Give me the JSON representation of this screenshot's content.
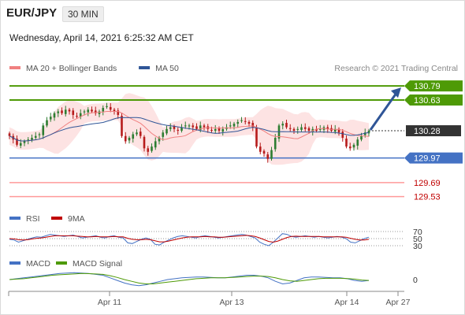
{
  "header": {
    "pair": "EUR/JPY",
    "timeframe": "30 MIN",
    "datetime": "Wednesday, April 14, 2021 6:25:32 AM CET"
  },
  "colors": {
    "bollinger": "#f08080",
    "ma50": "#2f5597",
    "candle_up": "#2e7d32",
    "candle_down": "#b71c1c",
    "resistance": "#4e9a06",
    "support": "#4472c4",
    "target": "#ff9a9a",
    "current": "#333333",
    "rsi": "#4472c4",
    "rsi_ma": "#c00000",
    "macd": "#4472c4",
    "macd_signal": "#4e9a06",
    "arrow": "#2f5597"
  },
  "chart_data": [
    {
      "type": "candlestick",
      "legend": [
        {
          "name": "MA 20 + Bollinger Bands",
          "color": "#f08080"
        },
        {
          "name": "MA 50",
          "color": "#2f5597"
        }
      ],
      "credit": "Research © 2021 Trading Central",
      "x_labels": [
        "Apr 11",
        "Apr 13",
        "Apr 14",
        "Apr 27"
      ],
      "ylim": [
        129.4,
        130.9
      ],
      "levels": [
        {
          "value": 130.79,
          "label": "130.79",
          "kind": "resistance"
        },
        {
          "value": 130.63,
          "label": "130.63",
          "kind": "resistance"
        },
        {
          "value": 130.28,
          "label": "130.28",
          "kind": "current"
        },
        {
          "value": 129.97,
          "label": "129.97",
          "kind": "support"
        },
        {
          "value": 129.69,
          "label": "129.69",
          "kind": "target"
        },
        {
          "value": 129.53,
          "label": "129.53",
          "kind": "target"
        }
      ],
      "projection": {
        "from": 130.28,
        "to": 130.79
      },
      "closes": [
        130.22,
        130.18,
        130.12,
        130.14,
        130.16,
        130.18,
        130.2,
        130.22,
        130.24,
        130.34,
        130.4,
        130.44,
        130.48,
        130.5,
        130.48,
        130.52,
        130.5,
        130.46,
        130.44,
        130.48,
        130.5,
        130.52,
        130.5,
        130.48,
        130.5,
        130.54,
        130.56,
        130.52,
        130.5,
        130.46,
        130.22,
        130.16,
        130.2,
        130.24,
        130.26,
        130.22,
        130.08,
        130.04,
        130.1,
        130.16,
        130.2,
        130.26,
        130.3,
        130.32,
        130.3,
        130.28,
        130.32,
        130.34,
        130.34,
        130.32,
        130.3,
        130.34,
        130.32,
        130.3,
        130.28,
        130.3,
        130.28,
        130.3,
        130.32,
        130.34,
        130.36,
        130.38,
        130.4,
        130.38,
        130.36,
        130.32,
        130.1,
        130.04,
        130.02,
        129.96,
        130.06,
        130.2,
        130.34,
        130.36,
        130.32,
        130.3,
        130.28,
        130.3,
        130.32,
        130.3,
        130.28,
        130.3,
        130.28,
        130.3,
        130.32,
        130.3,
        130.28,
        130.3,
        130.26,
        130.2,
        130.1,
        130.08,
        130.12,
        130.18,
        130.22,
        130.26,
        130.28
      ]
    },
    {
      "type": "line",
      "legend": [
        {
          "name": "RSI",
          "color": "#4472c4"
        },
        {
          "name": "9MA",
          "color": "#c00000"
        }
      ],
      "y_ticks": [
        70,
        50,
        30
      ],
      "ylim": [
        15,
        85
      ],
      "series": [
        {
          "name": "RSI",
          "values": [
            48,
            46,
            40,
            44,
            48,
            52,
            55,
            54,
            58,
            62,
            60,
            58,
            56,
            58,
            60,
            56,
            52,
            54,
            56,
            58,
            54,
            52,
            56,
            58,
            54,
            52,
            38,
            36,
            42,
            48,
            52,
            48,
            34,
            32,
            40,
            46,
            52,
            56,
            58,
            56,
            54,
            52,
            56,
            58,
            56,
            54,
            52,
            54,
            56,
            58,
            60,
            62,
            60,
            56,
            52,
            40,
            34,
            30,
            40,
            52,
            64,
            62,
            56,
            54,
            56,
            58,
            56,
            54,
            56,
            54,
            52,
            54,
            56,
            54,
            50,
            40,
            38,
            44,
            50,
            54
          ]
        },
        {
          "name": "9MA",
          "values": [
            50,
            49,
            47,
            46,
            47,
            49,
            51,
            52,
            54,
            56,
            58,
            58,
            58,
            58,
            58,
            57,
            56,
            55,
            55,
            56,
            55,
            55,
            55,
            56,
            55,
            55,
            51,
            48,
            47,
            47,
            48,
            47,
            44,
            41,
            41,
            43,
            46,
            49,
            52,
            54,
            55,
            55,
            55,
            56,
            55,
            55,
            54,
            54,
            55,
            56,
            57,
            58,
            59,
            58,
            56,
            52,
            47,
            42,
            40,
            43,
            48,
            53,
            56,
            57,
            56,
            56,
            56,
            56,
            56,
            55,
            55,
            55,
            55,
            55,
            54,
            51,
            48,
            46,
            46,
            48
          ]
        }
      ]
    },
    {
      "type": "line",
      "legend": [
        {
          "name": "MACD",
          "color": "#4472c4"
        },
        {
          "name": "MACD Signal",
          "color": "#4e9a06"
        }
      ],
      "y_ticks": [
        0
      ],
      "ylim": [
        -0.12,
        0.12
      ],
      "series": [
        {
          "name": "MACD",
          "values": [
            0.0,
            0.01,
            0.02,
            0.03,
            0.04,
            0.05,
            0.06,
            0.07,
            0.075,
            0.08,
            0.075,
            0.07,
            0.06,
            0.05,
            0.02,
            -0.01,
            -0.04,
            -0.06,
            -0.07,
            -0.06,
            -0.04,
            -0.02,
            0.0,
            0.01,
            0.02,
            0.025,
            0.03,
            0.03,
            0.025,
            0.02,
            0.02,
            0.03,
            0.04,
            0.05,
            0.05,
            0.04,
            0.02,
            -0.02,
            -0.05,
            -0.04,
            -0.01,
            0.02,
            0.03,
            0.03,
            0.025,
            0.02,
            0.02,
            0.01,
            -0.01,
            -0.02,
            -0.01
          ]
        },
        {
          "name": "MACD Signal",
          "values": [
            0.0,
            0.005,
            0.01,
            0.02,
            0.03,
            0.04,
            0.05,
            0.055,
            0.06,
            0.065,
            0.07,
            0.068,
            0.065,
            0.06,
            0.045,
            0.025,
            0.0,
            -0.02,
            -0.04,
            -0.05,
            -0.05,
            -0.04,
            -0.03,
            -0.02,
            -0.01,
            0.0,
            0.01,
            0.015,
            0.02,
            0.02,
            0.02,
            0.025,
            0.03,
            0.035,
            0.04,
            0.04,
            0.035,
            0.02,
            0.0,
            -0.015,
            -0.02,
            -0.01,
            0.0,
            0.01,
            0.015,
            0.015,
            0.015,
            0.012,
            0.005,
            -0.005,
            -0.01
          ]
        }
      ]
    }
  ]
}
